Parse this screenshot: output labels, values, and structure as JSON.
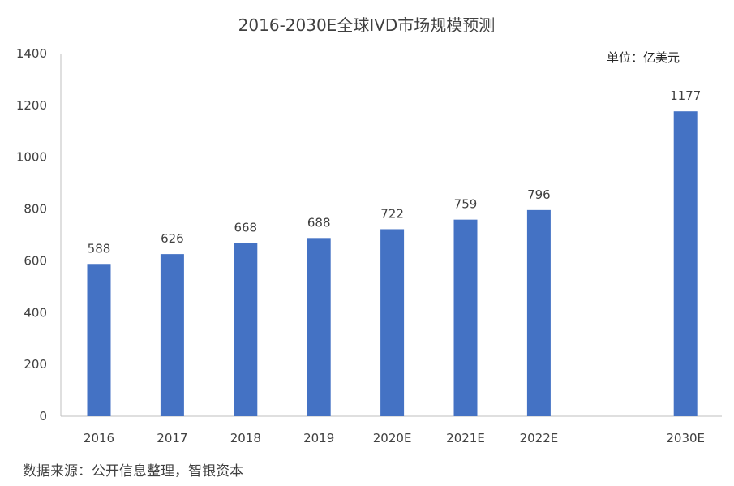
{
  "chart_data": {
    "type": "bar",
    "title": "2016-2030E全球IVD市场规模预测",
    "unit_label": "单位：亿美元",
    "source": "数据来源：公开信息整理，智银资本",
    "categories": [
      "2016",
      "2017",
      "2018",
      "2019",
      "2020E",
      "2021E",
      "2022E",
      "2030E"
    ],
    "values": [
      588,
      626,
      668,
      688,
      722,
      759,
      796,
      1177
    ],
    "data_labels": [
      "588",
      "626",
      "668",
      "688",
      "722",
      "759",
      "796",
      "1177"
    ],
    "xlabel": "",
    "ylabel": "",
    "ylim": [
      0,
      1400
    ],
    "y_ticks": [
      "0",
      "200",
      "400",
      "600",
      "800",
      "1000",
      "1200",
      "1400"
    ],
    "grid": false,
    "legend": "none",
    "bar_color": "#4472C4"
  }
}
